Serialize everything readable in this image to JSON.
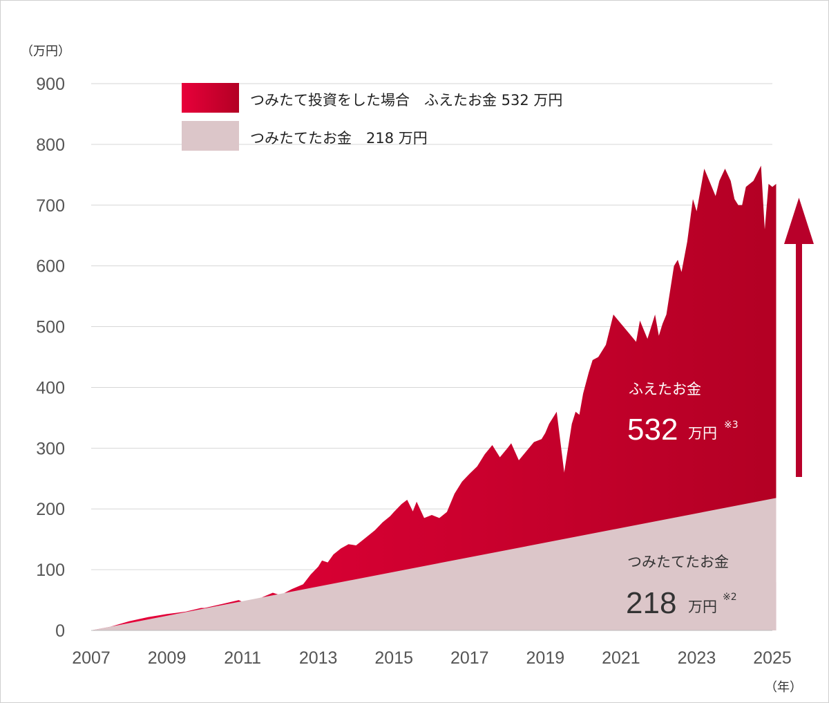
{
  "chart_data": {
    "type": "area",
    "y_unit_label": "（万円）",
    "x_unit_label": "（年）",
    "ylim": [
      0,
      900
    ],
    "y_ticks": [
      0,
      100,
      200,
      300,
      400,
      500,
      600,
      700,
      800,
      900
    ],
    "x_ticks": [
      "2007",
      "2009",
      "2011",
      "2013",
      "2015",
      "2017",
      "2019",
      "2021",
      "2023",
      "2025"
    ],
    "xlim": [
      2007,
      2025
    ],
    "grid": true,
    "legend_placement": "top-left",
    "series": [
      {
        "name": "つみたて投資をした場合　ふえたお金 532 万円",
        "color": "#c8002a",
        "x": [
          2007.0,
          2007.5,
          2008.0,
          2008.5,
          2009.0,
          2009.5,
          2009.9,
          2010.0,
          2010.5,
          2010.9,
          2011.0,
          2011.5,
          2011.8,
          2012.0,
          2012.3,
          2012.6,
          2012.8,
          2013.0,
          2013.1,
          2013.25,
          2013.4,
          2013.6,
          2013.8,
          2014.0,
          2014.2,
          2014.4,
          2014.5,
          2014.7,
          2014.9,
          2015.0,
          2015.2,
          2015.35,
          2015.5,
          2015.6,
          2015.8,
          2016.0,
          2016.2,
          2016.4,
          2016.6,
          2016.8,
          2017.0,
          2017.2,
          2017.4,
          2017.6,
          2017.8,
          2018.0,
          2018.1,
          2018.3,
          2018.5,
          2018.7,
          2018.9,
          2019.0,
          2019.1,
          2019.3,
          2019.5,
          2019.7,
          2019.8,
          2019.9,
          2020.0,
          2020.15,
          2020.25,
          2020.4,
          2020.6,
          2020.8,
          2021.0,
          2021.2,
          2021.4,
          2021.5,
          2021.7,
          2021.8,
          2021.9,
          2022.0,
          2022.1,
          2022.2,
          2022.4,
          2022.5,
          2022.6,
          2022.75,
          2022.9,
          2023.0,
          2023.2,
          2023.3,
          2023.5,
          2023.6,
          2023.75,
          2023.9,
          2024.0,
          2024.1,
          2024.2,
          2024.3,
          2024.5,
          2024.7,
          2024.8,
          2024.9,
          2025.0,
          2025.1
        ],
        "values": [
          0,
          6,
          15,
          22,
          27,
          31,
          37,
          37,
          44,
          50,
          47,
          54,
          62,
          58,
          68,
          76,
          92,
          105,
          115,
          112,
          125,
          135,
          142,
          140,
          150,
          160,
          165,
          178,
          188,
          195,
          208,
          215,
          196,
          212,
          185,
          190,
          185,
          195,
          225,
          245,
          258,
          270,
          290,
          305,
          285,
          300,
          308,
          280,
          295,
          310,
          315,
          325,
          340,
          360,
          260,
          340,
          360,
          355,
          390,
          425,
          445,
          450,
          470,
          520,
          505,
          490,
          475,
          510,
          480,
          500,
          520,
          485,
          505,
          520,
          600,
          610,
          590,
          640,
          710,
          690,
          760,
          745,
          715,
          740,
          760,
          740,
          710,
          700,
          700,
          730,
          740,
          765,
          660,
          735,
          730,
          735
        ]
      },
      {
        "name": "つみたてたお金　218 万円",
        "color": "#dcc6c9",
        "x": [
          2007.0,
          2025.1
        ],
        "values": [
          0,
          218
        ]
      }
    ],
    "annotations": {
      "increase": {
        "label": "ふえたお金",
        "value": "532",
        "unit": "万円",
        "note": "※3"
      },
      "contributed": {
        "label": "つみたてたお金",
        "value": "218",
        "unit": "万円",
        "note": "※2"
      }
    }
  }
}
